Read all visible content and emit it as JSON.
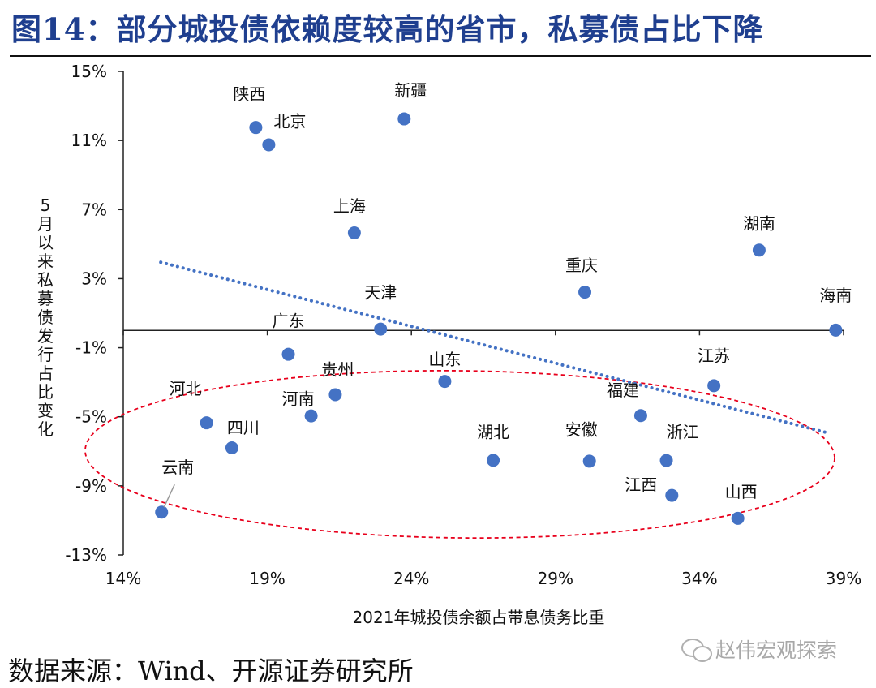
{
  "figure_title": "图14：部分城投债依赖度较高的省市，私募债占比下降",
  "source": "数据来源：Wind、开源证券研究所",
  "watermark": "赵伟宏观探索",
  "watermark_icon": "wechat-icon",
  "colors": {
    "title": "#1f3f8f",
    "point": "#4472c4",
    "trend": "#4472c4",
    "ellipse": "#e8001c"
  },
  "chart_data": {
    "type": "scatter",
    "title": "",
    "xlabel": "2021年城投债余额占带息债务比重",
    "ylabel": "5月以来私募债发行占比变化",
    "xlim": [
      0.14,
      0.39
    ],
    "ylim": [
      -0.13,
      0.15
    ],
    "x_ticks": [
      0.14,
      0.19,
      0.24,
      0.29,
      0.34,
      0.39
    ],
    "x_tick_labels": [
      "14%",
      "19%",
      "24%",
      "29%",
      "34%",
      "39%"
    ],
    "y_ticks": [
      0.15,
      0.11,
      0.07,
      0.03,
      -0.01,
      -0.05,
      -0.09,
      -0.13
    ],
    "y_tick_labels": [
      "15%",
      "11%",
      "7%",
      "3%",
      "-1%",
      "-5%",
      "-9%",
      "-13%"
    ],
    "grid": false,
    "trendline": {
      "style": "dotted",
      "x": [
        0.153,
        0.385
      ],
      "y": [
        0.0395,
        -0.0595
      ]
    },
    "ellipse_annotation": "red dashed ellipse around provinces with negative change",
    "points": [
      {
        "label": "陕西",
        "x": 0.186,
        "y": 0.1175
      },
      {
        "label": "北京",
        "x": 0.1905,
        "y": 0.1075
      },
      {
        "label": "新疆",
        "x": 0.2375,
        "y": 0.1225
      },
      {
        "label": "上海",
        "x": 0.2202,
        "y": 0.0565
      },
      {
        "label": "湖南",
        "x": 0.3607,
        "y": 0.0465
      },
      {
        "label": "重庆",
        "x": 0.3002,
        "y": 0.0222
      },
      {
        "label": "天津",
        "x": 0.2293,
        "y": 0.0008
      },
      {
        "label": "海南",
        "x": 0.3873,
        "y": 0.0002
      },
      {
        "label": "广东",
        "x": 0.1973,
        "y": -0.0138
      },
      {
        "label": "山东",
        "x": 0.2516,
        "y": -0.0295
      },
      {
        "label": "江苏",
        "x": 0.345,
        "y": -0.032
      },
      {
        "label": "贵州",
        "x": 0.2136,
        "y": -0.0372
      },
      {
        "label": "河南",
        "x": 0.2052,
        "y": -0.0495
      },
      {
        "label": "福建",
        "x": 0.3196,
        "y": -0.0493
      },
      {
        "label": "河北",
        "x": 0.1689,
        "y": -0.0535
      },
      {
        "label": "四川",
        "x": 0.1777,
        "y": -0.068
      },
      {
        "label": "湖北",
        "x": 0.2684,
        "y": -0.0752
      },
      {
        "label": "安徽",
        "x": 0.3018,
        "y": -0.0757
      },
      {
        "label": "浙江",
        "x": 0.3285,
        "y": -0.0753
      },
      {
        "label": "江西",
        "x": 0.3304,
        "y": -0.0955
      },
      {
        "label": "山西",
        "x": 0.3533,
        "y": -0.1088
      },
      {
        "label": "云南",
        "x": 0.1533,
        "y": -0.1052
      }
    ]
  }
}
